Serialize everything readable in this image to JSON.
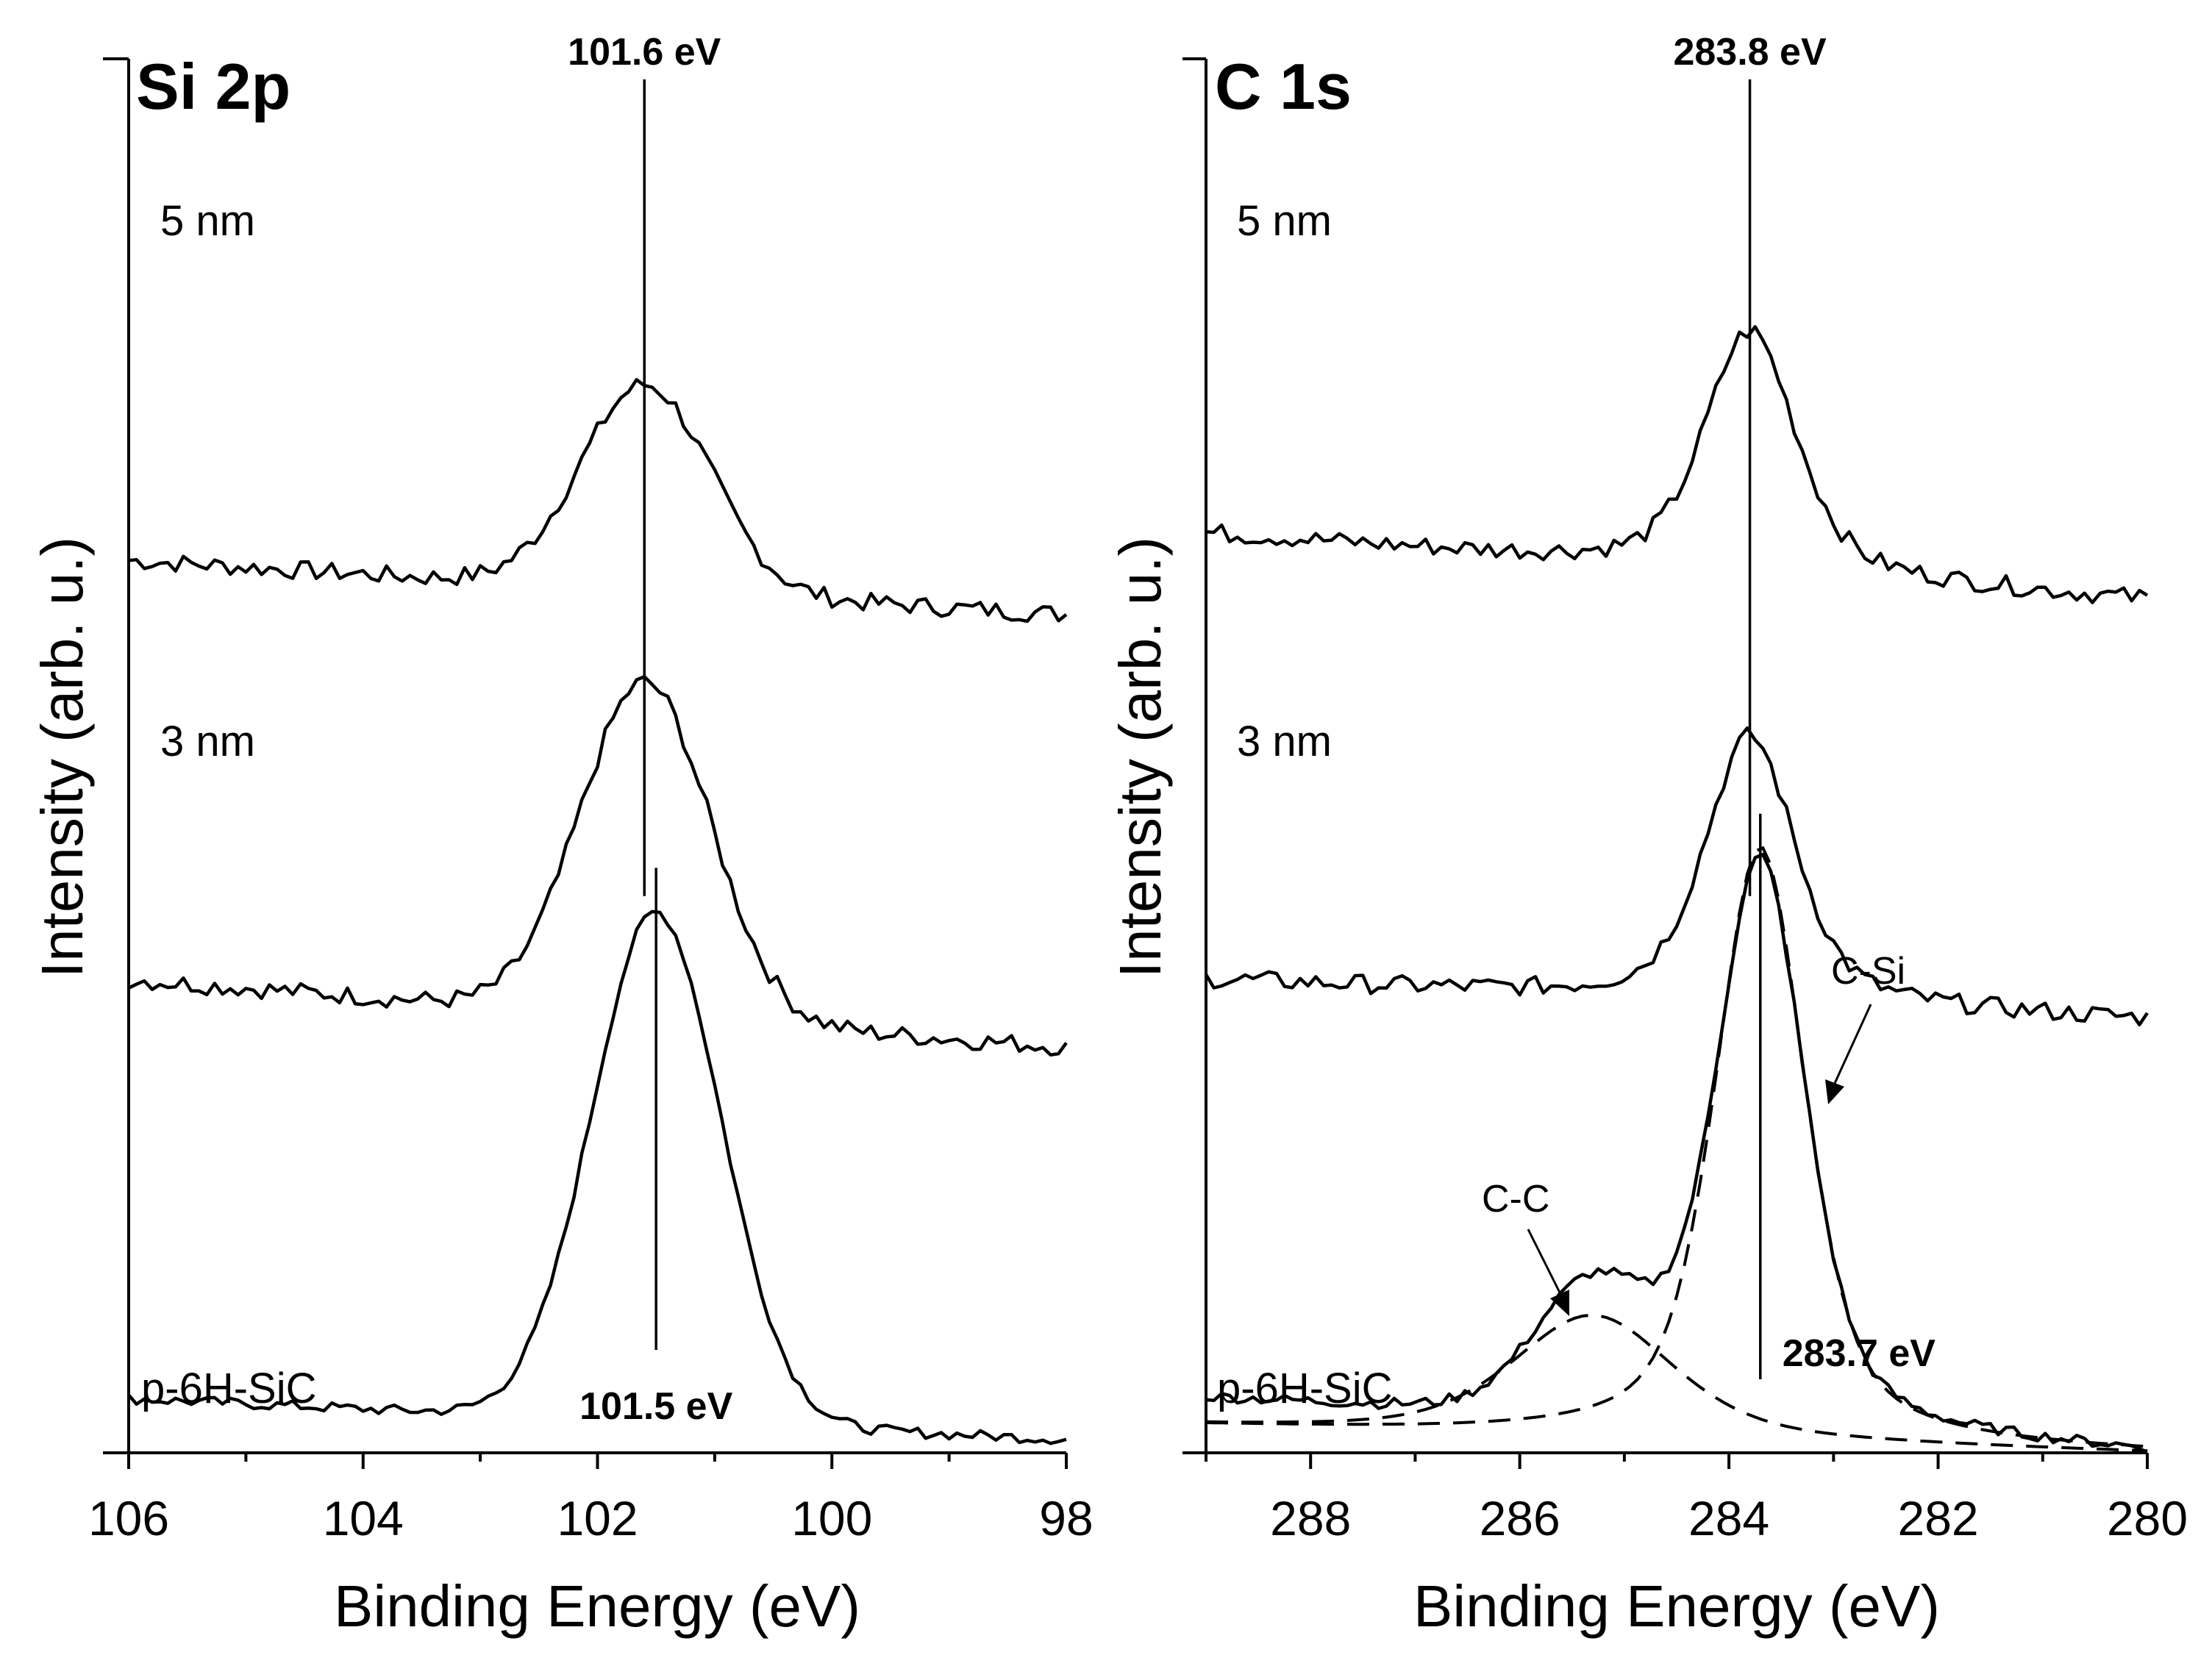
{
  "chart_data": [
    {
      "type": "line",
      "title": "Si 2p",
      "xlabel": "Binding Energy (eV)",
      "ylabel": "Intensity (arb. u.)",
      "xlim": [
        106,
        98
      ],
      "x_reversed": true,
      "xticks": [
        106,
        104,
        102,
        100,
        98
      ],
      "peak_markers": [
        {
          "x": 101.6,
          "label": "101.6 eV",
          "applies_to": [
            "5 nm",
            "3 nm"
          ]
        },
        {
          "x": 101.5,
          "label": "101.5 eV",
          "applies_to": [
            "p-6H-SiC"
          ]
        }
      ],
      "series": [
        {
          "name": "5 nm",
          "peak_x": 101.6,
          "baseline_high_be": 0.66,
          "baseline_low_be": 0.62,
          "peak_height": 0.79
        },
        {
          "name": "3 nm",
          "peak_x": 101.6,
          "baseline_high_be": 0.35,
          "baseline_low_be": 0.3,
          "peak_height": 0.57
        },
        {
          "name": "p-6H-SiC",
          "peak_x": 101.5,
          "baseline_high_be": 0.04,
          "baseline_low_be": 0.01,
          "peak_height": 0.4
        }
      ]
    },
    {
      "type": "line",
      "title": "C 1s",
      "xlabel": "Binding Energy (eV)",
      "ylabel": "Intensity (arb. u.)",
      "xlim": [
        289,
        280
      ],
      "x_reversed": true,
      "xticks": [
        288,
        286,
        284,
        282,
        280
      ],
      "peak_markers": [
        {
          "x": 283.8,
          "label": "283.8 eV",
          "applies_to": [
            "5 nm",
            "3 nm"
          ]
        },
        {
          "x": 283.7,
          "label": "283.7 eV",
          "applies_to": [
            "p-6H-SiC"
          ]
        }
      ],
      "annotations": [
        {
          "text": "C-C",
          "x": 285.3
        },
        {
          "text": "C-Si",
          "x": 283.0
        }
      ],
      "series": [
        {
          "name": "5 nm",
          "peak_x": 283.8,
          "baseline_high_be": 0.68,
          "baseline_low_be": 0.63,
          "peak_height": 0.83
        },
        {
          "name": "3 nm",
          "peak_x": 283.8,
          "baseline_high_be": 0.35,
          "baseline_low_be": 0.32,
          "peak_height": 0.53
        },
        {
          "name": "p-6H-SiC",
          "peak_x": 283.7,
          "baseline_high_be": 0.04,
          "baseline_low_be": 0.0,
          "peak_height": 0.44
        },
        {
          "name": "C-C fit",
          "style": "dashed",
          "peak_x": 285.3,
          "peak_height": 0.09
        },
        {
          "name": "C-Si fit",
          "style": "dashed",
          "peak_x": 283.7,
          "peak_height": 0.44
        }
      ]
    }
  ]
}
